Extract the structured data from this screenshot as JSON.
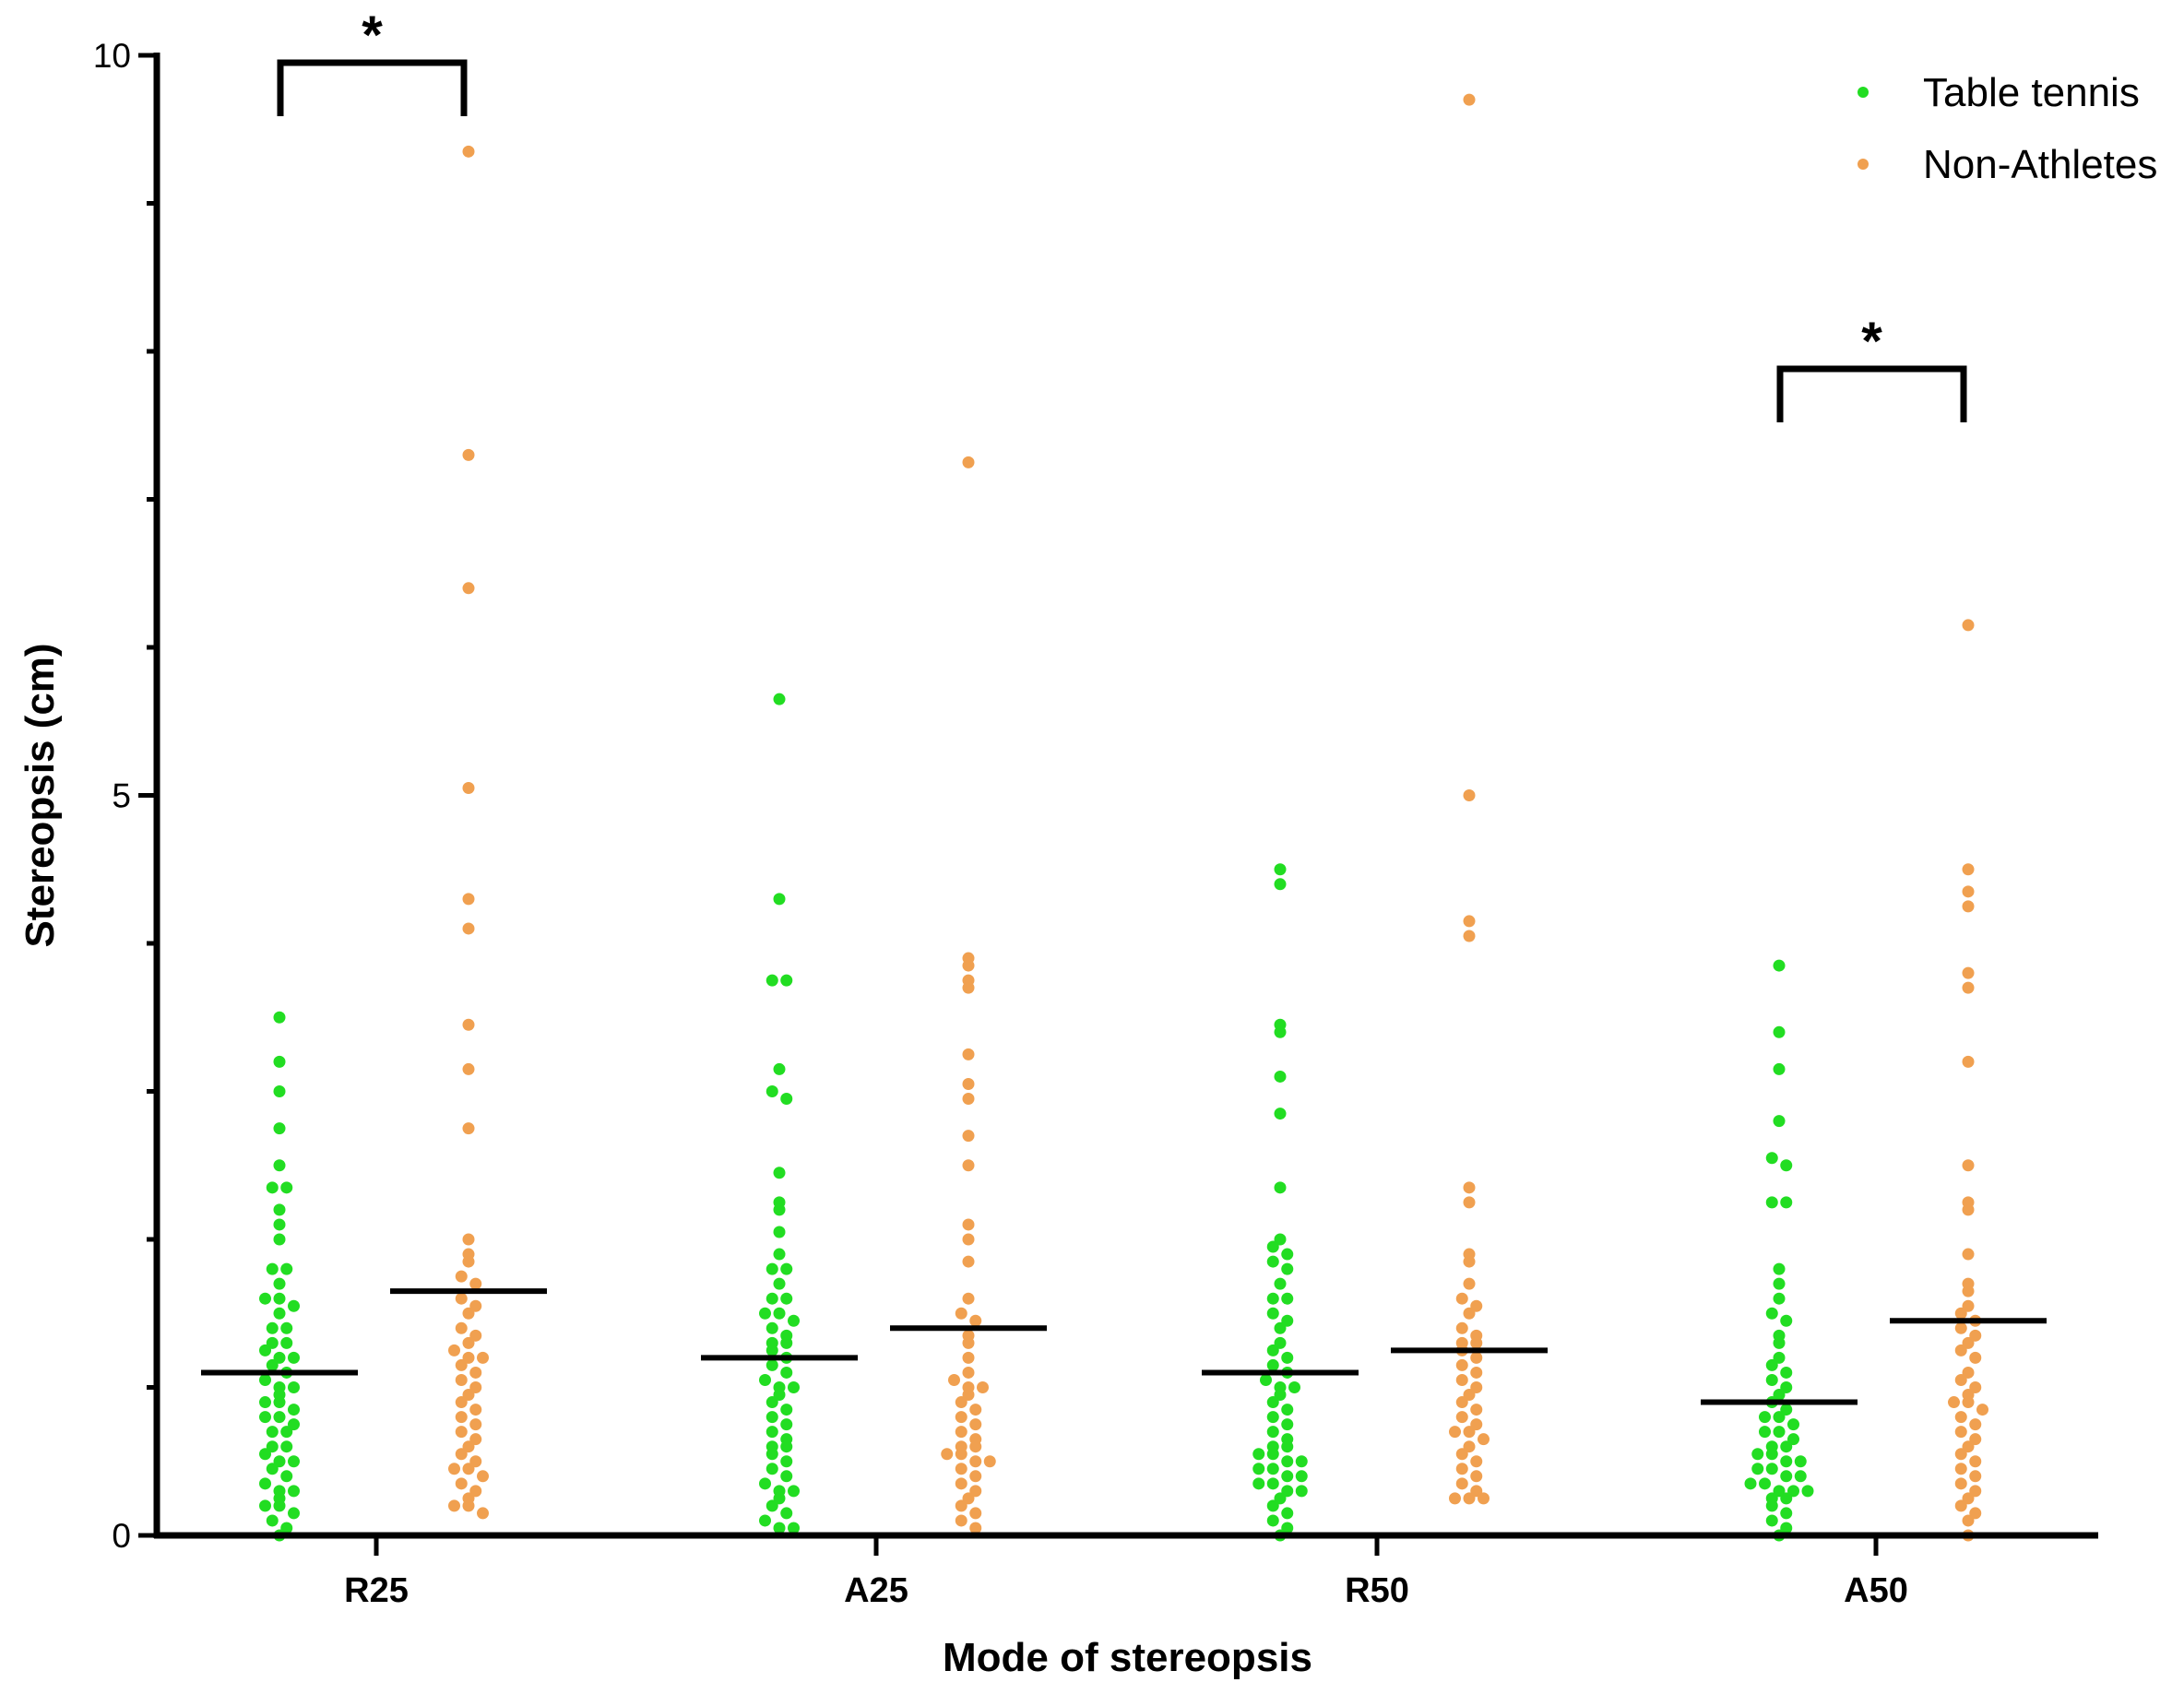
{
  "chart_data": {
    "type": "scatter",
    "title": "",
    "xlabel": "Mode of stereopsis",
    "ylabel": "Stereopsis (cm)",
    "ylim": [
      0,
      10
    ],
    "yticks": [
      0,
      5,
      10
    ],
    "categories": [
      "R25",
      "A25",
      "R50",
      "A50"
    ],
    "legend_position": "top-right",
    "colors": {
      "Table tennis": "#22dd22",
      "Non-Athletes": "#f0a050",
      "axis": "#000000"
    },
    "series": [
      {
        "name": "Table tennis",
        "means": [
          1.1,
          1.2,
          1.1,
          0.9
        ],
        "values": [
          [
            3.5,
            3.2,
            3.0,
            2.75,
            2.5,
            2.35,
            2.35,
            2.2,
            2.1,
            2.0,
            1.8,
            1.8,
            1.7,
            1.6,
            1.6,
            1.55,
            1.5,
            1.4,
            1.4,
            1.3,
            1.3,
            1.25,
            1.2,
            1.2,
            1.15,
            1.1,
            1.05,
            1.0,
            1.0,
            0.95,
            0.9,
            0.9,
            0.85,
            0.8,
            0.8,
            0.75,
            0.7,
            0.7,
            0.6,
            0.6,
            0.55,
            0.5,
            0.5,
            0.45,
            0.4,
            0.35,
            0.3,
            0.3,
            0.25,
            0.2,
            0.2,
            0.15,
            0.1,
            0.05,
            0.0
          ],
          [
            5.65,
            4.3,
            3.75,
            3.75,
            3.15,
            3.0,
            2.95,
            2.45,
            2.25,
            2.2,
            2.05,
            1.9,
            1.8,
            1.8,
            1.7,
            1.6,
            1.6,
            1.5,
            1.5,
            1.45,
            1.4,
            1.35,
            1.3,
            1.3,
            1.25,
            1.2,
            1.15,
            1.1,
            1.05,
            1.0,
            1.0,
            0.95,
            0.9,
            0.85,
            0.8,
            0.75,
            0.7,
            0.65,
            0.6,
            0.6,
            0.55,
            0.5,
            0.45,
            0.4,
            0.35,
            0.3,
            0.3,
            0.25,
            0.2,
            0.15,
            0.1,
            0.05,
            0.05
          ],
          [
            4.5,
            4.4,
            3.45,
            3.4,
            3.1,
            2.85,
            2.35,
            2.0,
            1.95,
            1.9,
            1.85,
            1.8,
            1.7,
            1.6,
            1.6,
            1.5,
            1.45,
            1.4,
            1.3,
            1.25,
            1.2,
            1.15,
            1.1,
            1.05,
            1.0,
            1.0,
            0.95,
            0.9,
            0.85,
            0.8,
            0.75,
            0.7,
            0.65,
            0.6,
            0.6,
            0.55,
            0.55,
            0.5,
            0.5,
            0.45,
            0.45,
            0.4,
            0.4,
            0.35,
            0.35,
            0.3,
            0.3,
            0.25,
            0.2,
            0.15,
            0.1,
            0.05,
            0.0
          ],
          [
            3.85,
            3.4,
            3.15,
            2.8,
            2.55,
            2.5,
            2.25,
            2.25,
            1.8,
            1.7,
            1.6,
            1.5,
            1.45,
            1.35,
            1.3,
            1.2,
            1.15,
            1.1,
            1.05,
            1.0,
            0.95,
            0.9,
            0.85,
            0.8,
            0.8,
            0.75,
            0.7,
            0.7,
            0.65,
            0.6,
            0.6,
            0.55,
            0.55,
            0.5,
            0.5,
            0.45,
            0.45,
            0.4,
            0.4,
            0.35,
            0.35,
            0.3,
            0.3,
            0.3,
            0.25,
            0.25,
            0.2,
            0.15,
            0.1,
            0.05,
            0.0
          ]
        ]
      },
      {
        "name": "Non-Athletes",
        "means": [
          1.65,
          1.4,
          1.25,
          1.45
        ],
        "values": [
          [
            9.35,
            7.3,
            6.4,
            5.05,
            4.3,
            4.1,
            3.45,
            3.15,
            2.75,
            2.0,
            1.9,
            1.85,
            1.75,
            1.7,
            1.6,
            1.55,
            1.5,
            1.4,
            1.35,
            1.3,
            1.25,
            1.2,
            1.2,
            1.15,
            1.1,
            1.05,
            1.0,
            0.95,
            0.9,
            0.85,
            0.8,
            0.75,
            0.7,
            0.65,
            0.6,
            0.55,
            0.5,
            0.45,
            0.45,
            0.4,
            0.35,
            0.3,
            0.25,
            0.2,
            0.2,
            0.15
          ],
          [
            7.25,
            3.9,
            3.85,
            3.75,
            3.7,
            3.25,
            3.05,
            2.95,
            2.7,
            2.5,
            2.1,
            2.0,
            1.85,
            1.6,
            1.5,
            1.45,
            1.35,
            1.3,
            1.2,
            1.1,
            1.05,
            1.0,
            1.0,
            0.95,
            0.9,
            0.85,
            0.8,
            0.75,
            0.7,
            0.65,
            0.6,
            0.6,
            0.55,
            0.55,
            0.5,
            0.5,
            0.45,
            0.4,
            0.35,
            0.3,
            0.25,
            0.2,
            0.15,
            0.1,
            0.05
          ],
          [
            9.7,
            5.0,
            4.15,
            4.05,
            2.35,
            2.25,
            1.9,
            1.85,
            1.7,
            1.6,
            1.55,
            1.5,
            1.4,
            1.35,
            1.3,
            1.3,
            1.25,
            1.2,
            1.15,
            1.1,
            1.05,
            1.0,
            0.95,
            0.9,
            0.85,
            0.8,
            0.75,
            0.7,
            0.7,
            0.65,
            0.6,
            0.55,
            0.5,
            0.45,
            0.4,
            0.35,
            0.3,
            0.25,
            0.25,
            0.25
          ],
          [
            6.15,
            4.5,
            4.35,
            4.25,
            3.8,
            3.7,
            3.2,
            2.5,
            2.25,
            2.2,
            1.9,
            1.7,
            1.65,
            1.55,
            1.5,
            1.45,
            1.4,
            1.35,
            1.3,
            1.25,
            1.2,
            1.1,
            1.05,
            1.0,
            0.95,
            0.9,
            0.9,
            0.85,
            0.8,
            0.75,
            0.7,
            0.65,
            0.6,
            0.55,
            0.5,
            0.45,
            0.4,
            0.35,
            0.3,
            0.25,
            0.2,
            0.15,
            0.1,
            0.0
          ]
        ]
      }
    ],
    "significance": [
      {
        "category": "R25",
        "label": "*"
      },
      {
        "category": "A50",
        "label": "*"
      }
    ]
  }
}
